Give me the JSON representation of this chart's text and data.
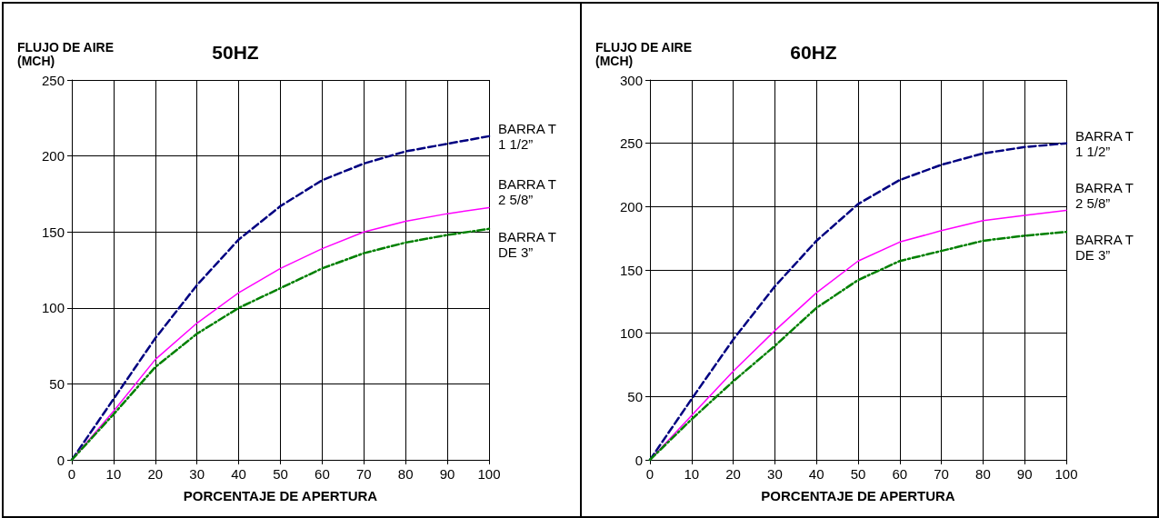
{
  "chart_data": [
    {
      "type": "line",
      "title": "50HZ",
      "xlabel": "PORCENTAJE DE APERTURA",
      "ylabel": "FLUJO DE AIRE\n(MCH)",
      "x": [
        0,
        10,
        20,
        30,
        40,
        50,
        60,
        70,
        80,
        90,
        100
      ],
      "series": [
        {
          "name": "BARRA T\n1 1/2”",
          "color": "#000080",
          "line_style": "dashed",
          "values": [
            0,
            40,
            80,
            115,
            145,
            167,
            184,
            195,
            203,
            208,
            213
          ]
        },
        {
          "name": "BARRA T\n2 5/8”",
          "color": "#ff00ff",
          "line_style": "solid",
          "values": [
            0,
            32,
            66,
            90,
            110,
            126,
            139,
            150,
            157,
            162,
            166
          ]
        },
        {
          "name": "BARRA T\nDE 3”",
          "color": "#008000",
          "line_style": "dashdot",
          "values": [
            0,
            30,
            61,
            83,
            100,
            113,
            126,
            136,
            143,
            148,
            152
          ]
        }
      ],
      "xlim": [
        0,
        100
      ],
      "xticks": [
        0,
        10,
        20,
        30,
        40,
        50,
        60,
        70,
        80,
        90,
        100
      ],
      "ylim": [
        0,
        250
      ],
      "yticks": [
        0,
        50,
        100,
        150,
        200,
        250
      ],
      "grid": true,
      "legend": false,
      "marker": "none"
    },
    {
      "type": "line",
      "title": "60HZ",
      "xlabel": "PORCENTAJE DE APERTURA",
      "ylabel": "FLUJO DE AIRE\n(MCH)",
      "x": [
        0,
        10,
        20,
        30,
        40,
        50,
        60,
        70,
        80,
        90,
        100
      ],
      "series": [
        {
          "name": "BARRA T\n1 1/2”",
          "color": "#000080",
          "line_style": "dashed",
          "values": [
            0,
            48,
            95,
            137,
            173,
            202,
            221,
            233,
            242,
            247,
            250
          ]
        },
        {
          "name": "BARRA T\n2 5/8”",
          "color": "#ff00ff",
          "line_style": "solid",
          "values": [
            0,
            35,
            70,
            102,
            132,
            157,
            172,
            181,
            189,
            193,
            197
          ]
        },
        {
          "name": "BARRA T\nDE 3”",
          "color": "#008000",
          "line_style": "dashdot",
          "values": [
            0,
            32,
            62,
            90,
            120,
            142,
            157,
            165,
            173,
            177,
            180
          ]
        }
      ],
      "xlim": [
        0,
        100
      ],
      "xticks": [
        0,
        10,
        20,
        30,
        40,
        50,
        60,
        70,
        80,
        90,
        100
      ],
      "ylim": [
        0,
        300
      ],
      "yticks": [
        0,
        50,
        100,
        150,
        200,
        250,
        300
      ],
      "grid": true,
      "legend": false,
      "marker": "none"
    }
  ]
}
